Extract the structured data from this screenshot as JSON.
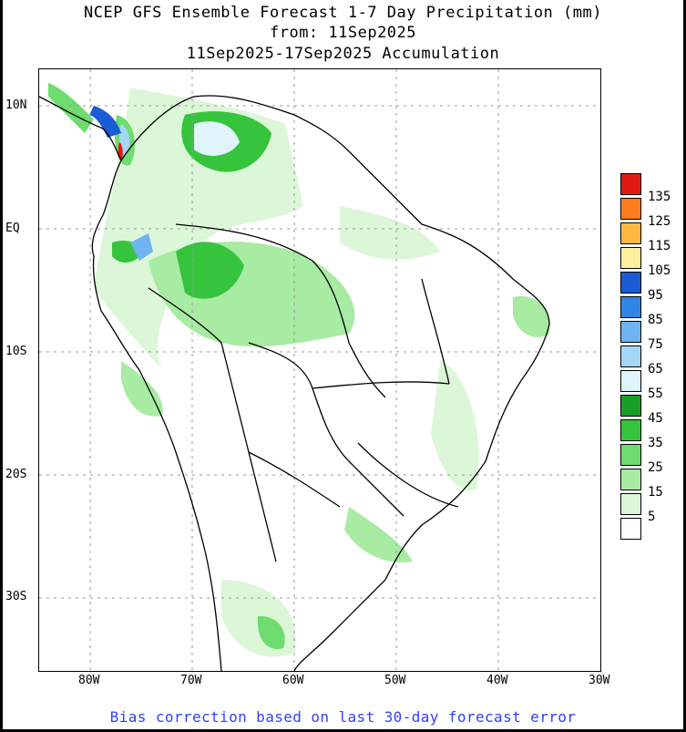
{
  "title": {
    "line1": "NCEP GFS Ensemble Forecast 1-7 Day Precipitation (mm)",
    "line2": "from: 11Sep2025",
    "line3": "11Sep2025-17Sep2025 Accumulation"
  },
  "axes": {
    "lat_ticks": [
      "10N",
      "EQ",
      "10S",
      "20S",
      "30S"
    ],
    "lon_ticks": [
      "80W",
      "70W",
      "60W",
      "50W",
      "40W",
      "30W"
    ]
  },
  "legend": {
    "levels": [
      {
        "label": "135",
        "color": "#e01a10"
      },
      {
        "label": "125",
        "color": "#ff7d1c"
      },
      {
        "label": "115",
        "color": "#ffb840"
      },
      {
        "label": "105",
        "color": "#fff0a0"
      },
      {
        "label": "95",
        "color": "#1a5bd6"
      },
      {
        "label": "85",
        "color": "#2f86e8"
      },
      {
        "label": "75",
        "color": "#6fb4f0"
      },
      {
        "label": "65",
        "color": "#a6d6f8"
      },
      {
        "label": "55",
        "color": "#e0f4fb"
      },
      {
        "label": "45",
        "color": "#16a025"
      },
      {
        "label": "35",
        "color": "#35c43c"
      },
      {
        "label": "25",
        "color": "#6edc6e"
      },
      {
        "label": "15",
        "color": "#a8eba3"
      },
      {
        "label": "5",
        "color": "#dcf7d8"
      },
      {
        "label": "",
        "color": "#ffffff"
      }
    ]
  },
  "footnote": "Bias correction based on last 30-day forecast error"
}
